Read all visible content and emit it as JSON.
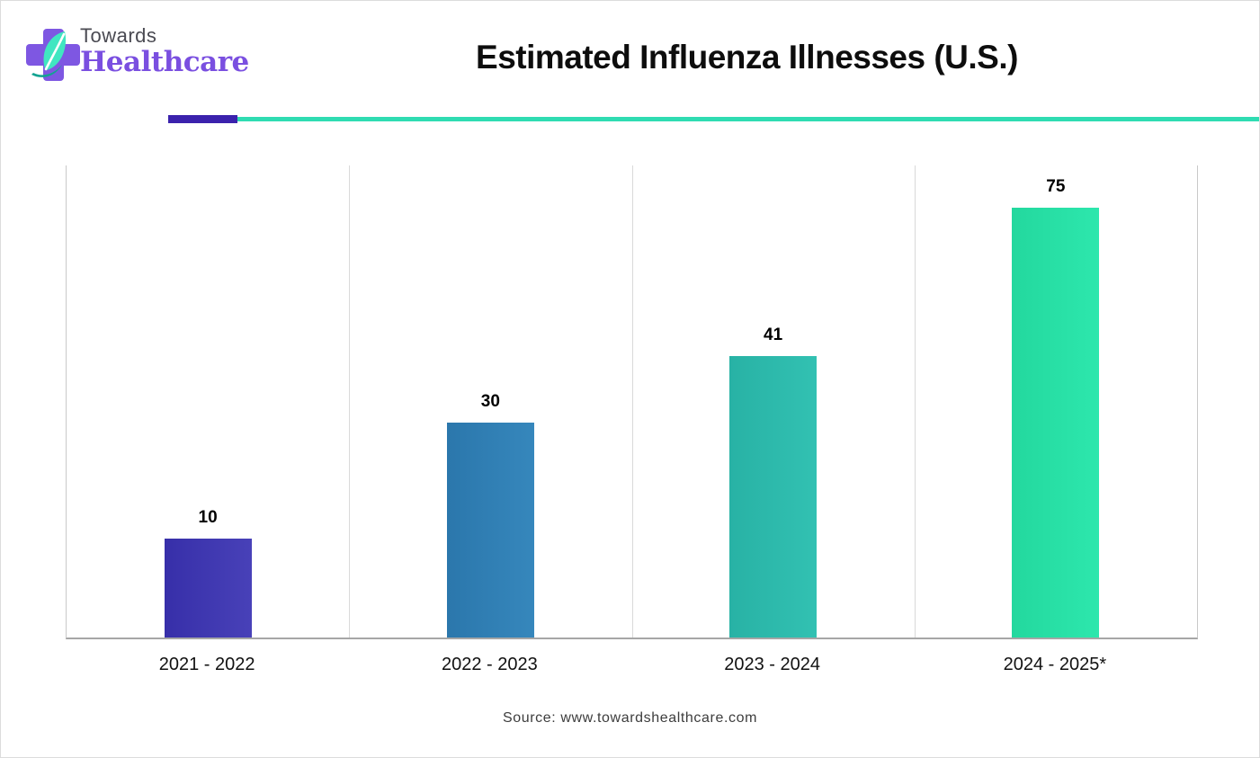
{
  "header": {
    "logo": {
      "brand_top": "Towards",
      "brand_bottom": "Healthcare",
      "cross_color": "#7e57e2",
      "leaf_color": "#40e6c1",
      "leaf_dark_color": "#12a391"
    }
  },
  "divider": {
    "purple": "#3b22ad",
    "teal": "#2fdcb2"
  },
  "chart_data": {
    "type": "bar",
    "title": "Estimated Influenza Illnesses (U.S.)",
    "categories": [
      "2021 - 2022",
      "2022 - 2023",
      "2023 - 2024",
      "2024 - 2025*"
    ],
    "values": [
      10,
      30,
      41,
      75
    ],
    "data_labels_shown": true,
    "xlabel": "",
    "ylabel": "",
    "y_axis_visible": false,
    "grid": "vertical category separators only",
    "legend": "none",
    "bar_height_pct_as_drawn": [
      21.0,
      45.6,
      59.7,
      91.0
    ],
    "bar_colors": [
      {
        "from": "#372fa9",
        "to": "#4841b8"
      },
      {
        "from": "#2b77ac",
        "to": "#3687bc"
      },
      {
        "from": "#28b2a5",
        "to": "#32c1b2"
      },
      {
        "from": "#23d89e",
        "to": "#2de7ad"
      }
    ]
  },
  "footer": {
    "source": "Source: www.towardshealthcare.com"
  }
}
